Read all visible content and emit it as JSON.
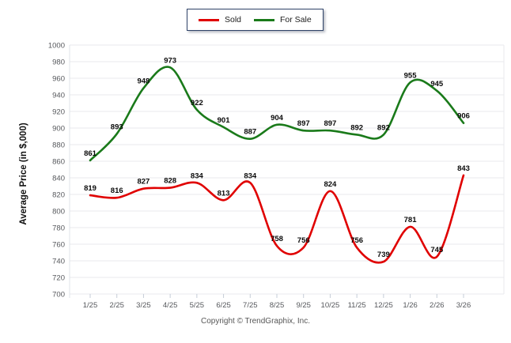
{
  "chart_data": {
    "type": "line",
    "x": [
      "1/25",
      "2/25",
      "3/25",
      "4/25",
      "5/25",
      "6/25",
      "7/25",
      "8/25",
      "9/25",
      "10/25",
      "11/25",
      "12/25",
      "1/26",
      "2/26",
      "3/26"
    ],
    "series": [
      {
        "name": "Sold",
        "color": "#e00000",
        "values": [
          819,
          816,
          827,
          828,
          834,
          813,
          834,
          758,
          756,
          824,
          756,
          739,
          781,
          745,
          843
        ]
      },
      {
        "name": "For Sale",
        "color": "#1a7a1a",
        "values": [
          861,
          893,
          948,
          973,
          922,
          901,
          887,
          904,
          897,
          897,
          892,
          892,
          955,
          945,
          906
        ]
      }
    ],
    "title": "",
    "xlabel": "",
    "ylabel": "Average Price (in $,000)",
    "ylim": [
      700,
      1000
    ],
    "ytick_step": 20,
    "grid": true,
    "legend_position": "top-center"
  },
  "colors": {
    "grid": "#e8eaed",
    "plot_border": "#dfe3e8",
    "tick": "#c6cdd8",
    "axis_text": "#56585c",
    "data_label": "#0a0a0a",
    "legend_border": "#2f4368"
  },
  "footer": {
    "copyright": "Copyright © TrendGraphix, Inc."
  }
}
